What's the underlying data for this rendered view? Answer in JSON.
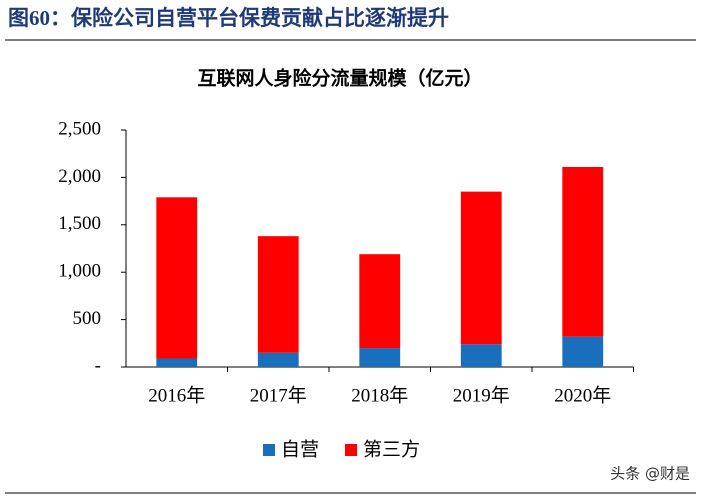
{
  "chart_data": {
    "type": "stacked_bar",
    "figure_title": "图60：保险公司自营平台保费贡献占比逐渐提升",
    "title": "互联网人身险分流量规模（亿元）",
    "categories": [
      "2016年",
      "2017年",
      "2018年",
      "2019年",
      "2020年"
    ],
    "series": [
      {
        "name": "自营",
        "color": "#1a6fbd",
        "values": [
          90,
          150,
          200,
          240,
          320
        ]
      },
      {
        "name": "第三方",
        "color": "#ff0000",
        "values": [
          1700,
          1230,
          990,
          1610,
          1790
        ]
      }
    ],
    "ylim": [
      0,
      2500
    ],
    "yticks": [
      {
        "value": 0,
        "label": "-"
      },
      500,
      {
        "value": 1000,
        "label": "1,000"
      },
      {
        "value": 1500,
        "label": "1,500"
      },
      {
        "value": 2000,
        "label": "2,000"
      },
      {
        "value": 2500,
        "label": "2,500"
      }
    ],
    "grid": false,
    "legend": "bottom",
    "watermark": "头条 @财是"
  }
}
